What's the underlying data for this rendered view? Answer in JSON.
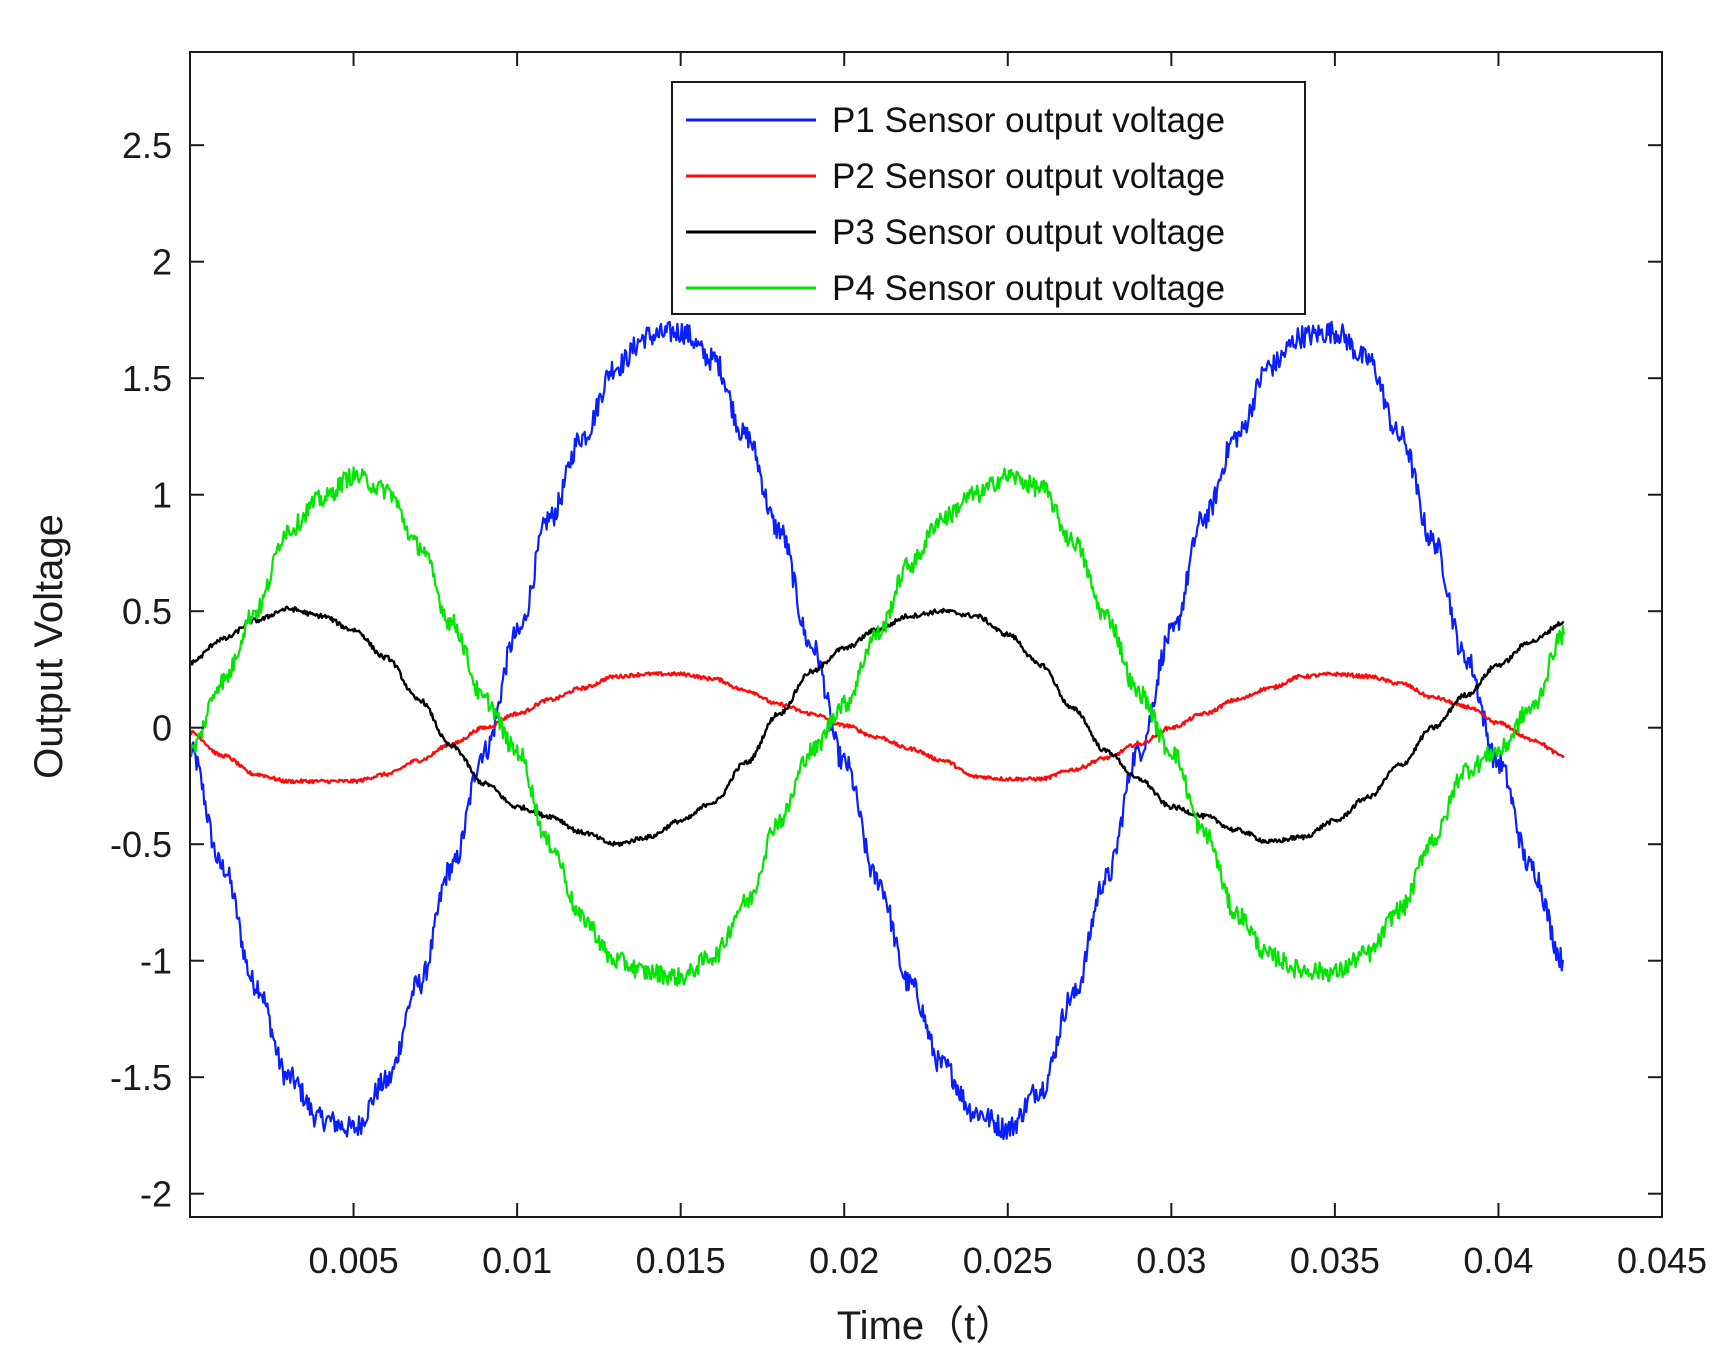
{
  "chart_data": {
    "type": "line",
    "title": "",
    "xlabel": "Time（t）",
    "ylabel": "Output Voltage",
    "xlim": [
      0,
      0.045
    ],
    "ylim": [
      -2.1,
      2.9
    ],
    "xticks": [
      0.005,
      0.01,
      0.015,
      0.02,
      0.025,
      0.03,
      0.035,
      0.04,
      0.045
    ],
    "xtick_labels": [
      "0.005",
      "0.01",
      "0.015",
      "0.02",
      "0.025",
      "0.03",
      "0.035",
      "0.04",
      "0.045"
    ],
    "yticks": [
      -2,
      -1.5,
      -1,
      -0.5,
      0,
      0.5,
      1,
      1.5,
      2,
      2.5
    ],
    "ytick_labels": [
      "-2",
      "-1.5",
      "-1",
      "-0.5",
      "0",
      "0.5",
      "1",
      "1.5",
      "2",
      "2.5"
    ],
    "grid": false,
    "legend_position": "top-center",
    "x": [
      0,
      0.001,
      0.002,
      0.003,
      0.004,
      0.005,
      0.006,
      0.007,
      0.008,
      0.009,
      0.01,
      0.011,
      0.012,
      0.013,
      0.014,
      0.015,
      0.016,
      0.017,
      0.018,
      0.019,
      0.02,
      0.021,
      0.022,
      0.023,
      0.024,
      0.025,
      0.026,
      0.027,
      0.028,
      0.029,
      0.03,
      0.031,
      0.032,
      0.033,
      0.034,
      0.035,
      0.036,
      0.037,
      0.038,
      0.039,
      0.04,
      0.041,
      0.042
    ],
    "series": [
      {
        "name": "P1 Sensor output voltage",
        "color": "#0a1fff",
        "noise": 0.05,
        "values": [
          -0.1,
          -0.6,
          -1.1,
          -1.5,
          -1.68,
          -1.72,
          -1.52,
          -1.1,
          -0.6,
          -0.1,
          0.4,
          0.9,
          1.25,
          1.55,
          1.68,
          1.7,
          1.58,
          1.25,
          0.85,
          0.35,
          -0.15,
          -0.65,
          -1.1,
          -1.45,
          -1.65,
          -1.72,
          -1.55,
          -1.15,
          -0.65,
          -0.1,
          0.4,
          0.9,
          1.25,
          1.55,
          1.68,
          1.7,
          1.58,
          1.25,
          0.8,
          0.3,
          -0.15,
          -0.6,
          -1.0
        ]
      },
      {
        "name": "P2 Sensor output voltage",
        "color": "#ff0a0a",
        "noise": 0.008,
        "values": [
          -0.02,
          -0.12,
          -0.2,
          -0.23,
          -0.23,
          -0.23,
          -0.2,
          -0.14,
          -0.07,
          0.0,
          0.06,
          0.12,
          0.17,
          0.22,
          0.23,
          0.23,
          0.21,
          0.16,
          0.1,
          0.06,
          0.01,
          -0.04,
          -0.09,
          -0.14,
          -0.21,
          -0.22,
          -0.22,
          -0.18,
          -0.13,
          -0.07,
          0.0,
          0.06,
          0.12,
          0.17,
          0.22,
          0.23,
          0.22,
          0.19,
          0.13,
          0.09,
          0.02,
          -0.05,
          -0.12
        ]
      },
      {
        "name": "P3 Sensor output voltage",
        "color": "#000000",
        "noise": 0.01,
        "values": [
          0.28,
          0.38,
          0.46,
          0.51,
          0.48,
          0.42,
          0.3,
          0.12,
          -0.08,
          -0.24,
          -0.34,
          -0.38,
          -0.45,
          -0.5,
          -0.47,
          -0.4,
          -0.32,
          -0.15,
          0.06,
          0.24,
          0.34,
          0.42,
          0.48,
          0.5,
          0.48,
          0.4,
          0.27,
          0.08,
          -0.1,
          -0.22,
          -0.34,
          -0.38,
          -0.44,
          -0.49,
          -0.47,
          -0.4,
          -0.3,
          -0.16,
          0.0,
          0.14,
          0.27,
          0.37,
          0.45
        ]
      },
      {
        "name": "P4 Sensor output voltage",
        "color": "#00e600",
        "noise": 0.04,
        "values": [
          -0.1,
          0.2,
          0.5,
          0.85,
          0.98,
          1.08,
          1.02,
          0.78,
          0.45,
          0.12,
          -0.1,
          -0.5,
          -0.82,
          -1.0,
          -1.05,
          -1.07,
          -0.98,
          -0.75,
          -0.4,
          -0.1,
          0.1,
          0.4,
          0.7,
          0.9,
          1.0,
          1.08,
          1.03,
          0.8,
          0.48,
          0.15,
          -0.1,
          -0.45,
          -0.8,
          -0.98,
          -1.04,
          -1.05,
          -0.97,
          -0.78,
          -0.48,
          -0.18,
          -0.1,
          0.08,
          0.4
        ]
      }
    ]
  }
}
